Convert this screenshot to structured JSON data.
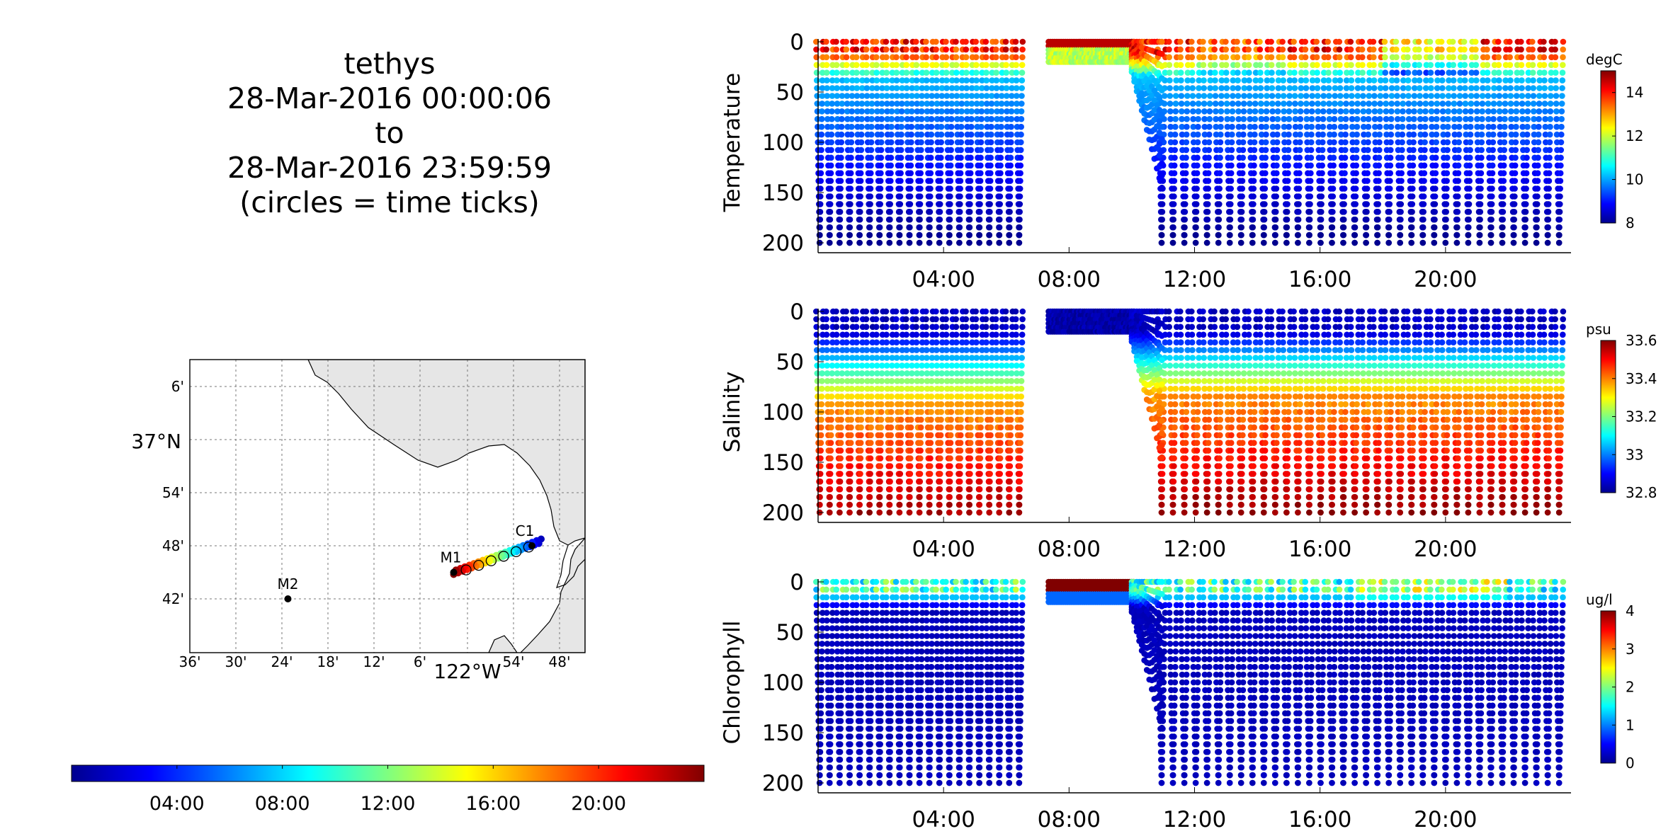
{
  "header": {
    "vehicle": "tethys",
    "start": "28-Mar-2016 00:00:06",
    "to": "to",
    "end": "28-Mar-2016 23:59:59",
    "note": "(circles = time ticks)"
  },
  "colors": {
    "jet": [
      "#00008f",
      "#0000ff",
      "#00ffff",
      "#ffff00",
      "#ff0000",
      "#800000"
    ],
    "land": "#e6e6e6",
    "mooring": "#000000"
  },
  "map": {
    "lat_labels": [
      "6'",
      "37°N",
      "54'",
      "48'",
      "42'"
    ],
    "lon_labels": [
      "36'",
      "30'",
      "24'",
      "18'",
      "12'",
      "6'",
      "122°W",
      "54'",
      "48'"
    ],
    "moorings": [
      {
        "label": "M1",
        "lon": -122.03,
        "lat": 36.75
      },
      {
        "label": "M2",
        "lon": -122.39,
        "lat": 36.7
      },
      {
        "label": "C1",
        "lon": -121.86,
        "lat": 36.8
      }
    ],
    "track": {
      "start": {
        "lon": -122.03,
        "lat": 36.75
      },
      "end": {
        "lon": -121.84,
        "lat": 36.81
      }
    }
  },
  "time_colorbar": {
    "ticks": [
      "04:00",
      "08:00",
      "12:00",
      "16:00",
      "20:00"
    ]
  },
  "chart_data": [
    {
      "type": "scatter",
      "ylabel": "Temperature",
      "units": "degC",
      "clim": [
        8,
        15
      ],
      "colorbar_ticks": [
        "8",
        "10",
        "12",
        "14"
      ],
      "ylim": [
        200,
        0
      ],
      "yticks": [
        "0",
        "50",
        "100",
        "150",
        "200"
      ],
      "xlim": [
        "00:00",
        "24:00"
      ],
      "xticks": [
        "04:00",
        "08:00",
        "12:00",
        "16:00",
        "20:00"
      ],
      "profile": {
        "surface": 14,
        "mixed_layer_depth": 20,
        "deep": 8
      },
      "gap_hours": [
        6.6,
        7.3
      ]
    },
    {
      "type": "scatter",
      "ylabel": "Salinity",
      "units": "psu",
      "clim": [
        32.8,
        33.6
      ],
      "colorbar_ticks": [
        "32.8",
        "33",
        "33.2",
        "33.4",
        "33.6"
      ],
      "ylim": [
        200,
        0
      ],
      "yticks": [
        "0",
        "50",
        "100",
        "150",
        "200"
      ],
      "xlim": [
        "00:00",
        "24:00"
      ],
      "xticks": [
        "04:00",
        "08:00",
        "12:00",
        "16:00",
        "20:00"
      ],
      "profile": {
        "surface": 32.85,
        "halocline_depth": 70,
        "deep": 33.55
      },
      "gap_hours": [
        6.6,
        7.3
      ]
    },
    {
      "type": "scatter",
      "ylabel": "Chlorophyll",
      "units": "ug/l",
      "clim": [
        0,
        4
      ],
      "colorbar_ticks": [
        "0",
        "1",
        "2",
        "3",
        "4"
      ],
      "ylim": [
        200,
        0
      ],
      "yticks": [
        "0",
        "50",
        "100",
        "150",
        "200"
      ],
      "xlim": [
        "00:00",
        "24:00"
      ],
      "xticks": [
        "04:00",
        "08:00",
        "12:00",
        "16:00",
        "20:00"
      ],
      "profile": {
        "surface": 2.0,
        "layer_depth": 15,
        "deep": 0.1
      },
      "gap_hours": [
        6.6,
        7.3
      ]
    }
  ]
}
